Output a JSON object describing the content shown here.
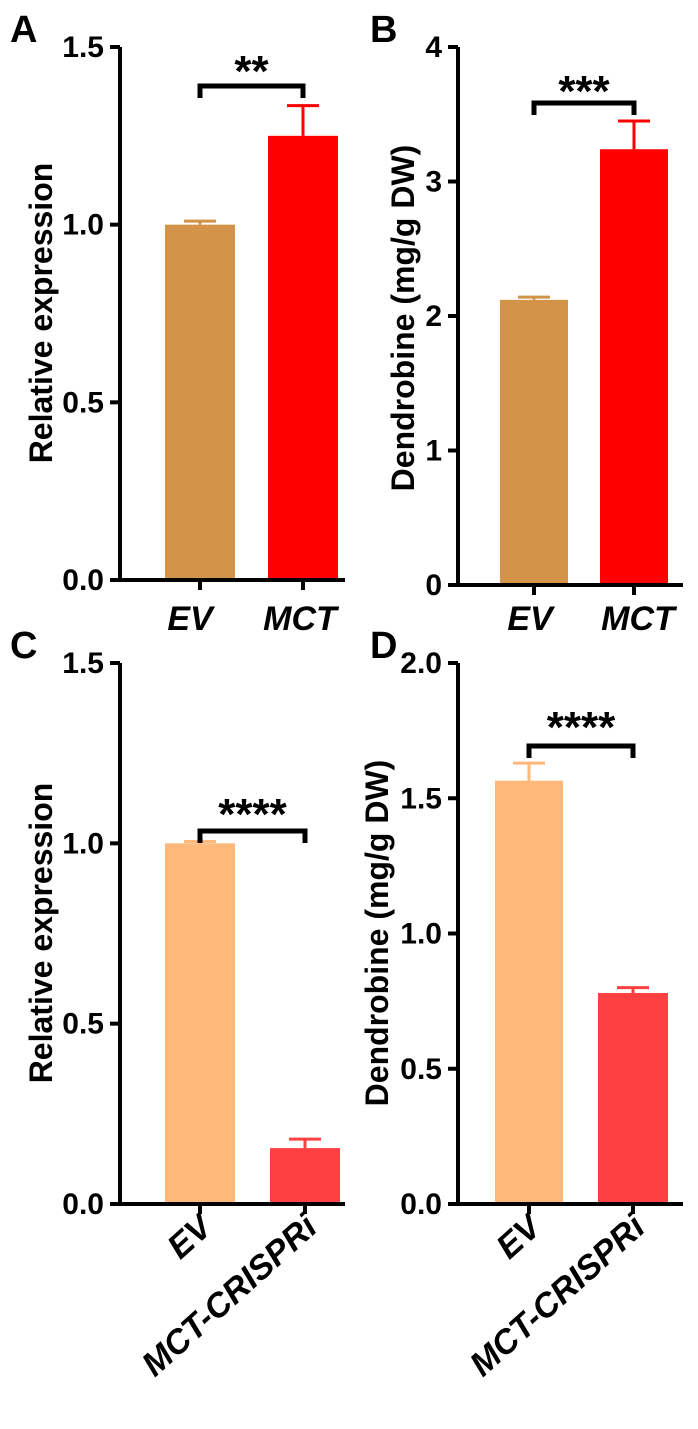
{
  "chart_data": [
    {
      "panel": "A",
      "type": "bar",
      "categories": [
        "EV",
        "MCT"
      ],
      "values": [
        1.0,
        1.25
      ],
      "errors": [
        0.01,
        0.085
      ],
      "colors": [
        "#D3944A",
        "#FF0000"
      ],
      "ylabel": "Relative expression",
      "ylim": [
        0,
        1.5
      ],
      "yticks": [
        "0.0",
        "0.5",
        "1.0",
        "1.5"
      ],
      "significance": "**"
    },
    {
      "panel": "B",
      "type": "bar",
      "categories": [
        "EV",
        "MCT"
      ],
      "values": [
        2.12,
        3.24
      ],
      "errors": [
        0.02,
        0.21
      ],
      "colors": [
        "#D3944A",
        "#FF0000"
      ],
      "ylabel": "Dendrobine (mg/g DW)",
      "ylim": [
        0,
        4
      ],
      "yticks": [
        "0",
        "1",
        "2",
        "3",
        "4"
      ],
      "significance": "***"
    },
    {
      "panel": "C",
      "type": "bar",
      "categories": [
        "EV",
        "MCT-CRISPRi"
      ],
      "values": [
        1.0,
        0.155
      ],
      "errors": [
        0.005,
        0.025
      ],
      "colors": [
        "#FDB87A",
        "#FF4040"
      ],
      "ylabel": "Relative expression",
      "ylim": [
        0,
        1.5
      ],
      "yticks": [
        "0.0",
        "0.5",
        "1.0",
        "1.5"
      ],
      "significance": "****"
    },
    {
      "panel": "D",
      "type": "bar",
      "categories": [
        "EV",
        "MCT-CRISPRi"
      ],
      "values": [
        1.565,
        0.78
      ],
      "errors": [
        0.065,
        0.02
      ],
      "colors": [
        "#FDB87A",
        "#FF4040"
      ],
      "ylabel": "Dendrobine (mg/g DW)",
      "ylim": [
        0,
        2.0
      ],
      "yticks": [
        "0.0",
        "0.5",
        "1.0",
        "1.5",
        "2.0"
      ],
      "significance": "****"
    }
  ]
}
